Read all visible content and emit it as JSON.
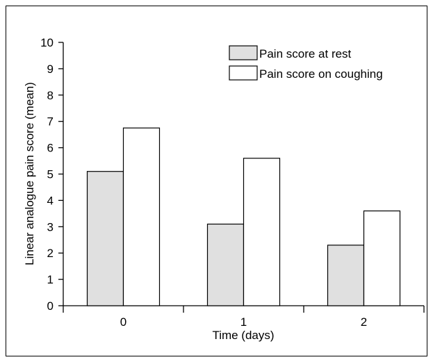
{
  "chart_data": {
    "type": "bar",
    "title": "",
    "xlabel": "Time (days)",
    "ylabel": "Linear analogue pain score (mean)",
    "categories": [
      "0",
      "1",
      "2"
    ],
    "ylim": [
      0,
      10
    ],
    "yticks": [
      "0",
      "1",
      "2",
      "3",
      "4",
      "5",
      "6",
      "7",
      "8",
      "9",
      "10"
    ],
    "grid": false,
    "legend_position": "top-right",
    "series": [
      {
        "name": "Pain score at rest",
        "values": [
          5.1,
          3.1,
          2.3
        ],
        "color": "#e0e0e0"
      },
      {
        "name": "Pain score on coughing",
        "values": [
          6.75,
          5.6,
          3.6
        ],
        "color": "#ffffff"
      }
    ]
  }
}
